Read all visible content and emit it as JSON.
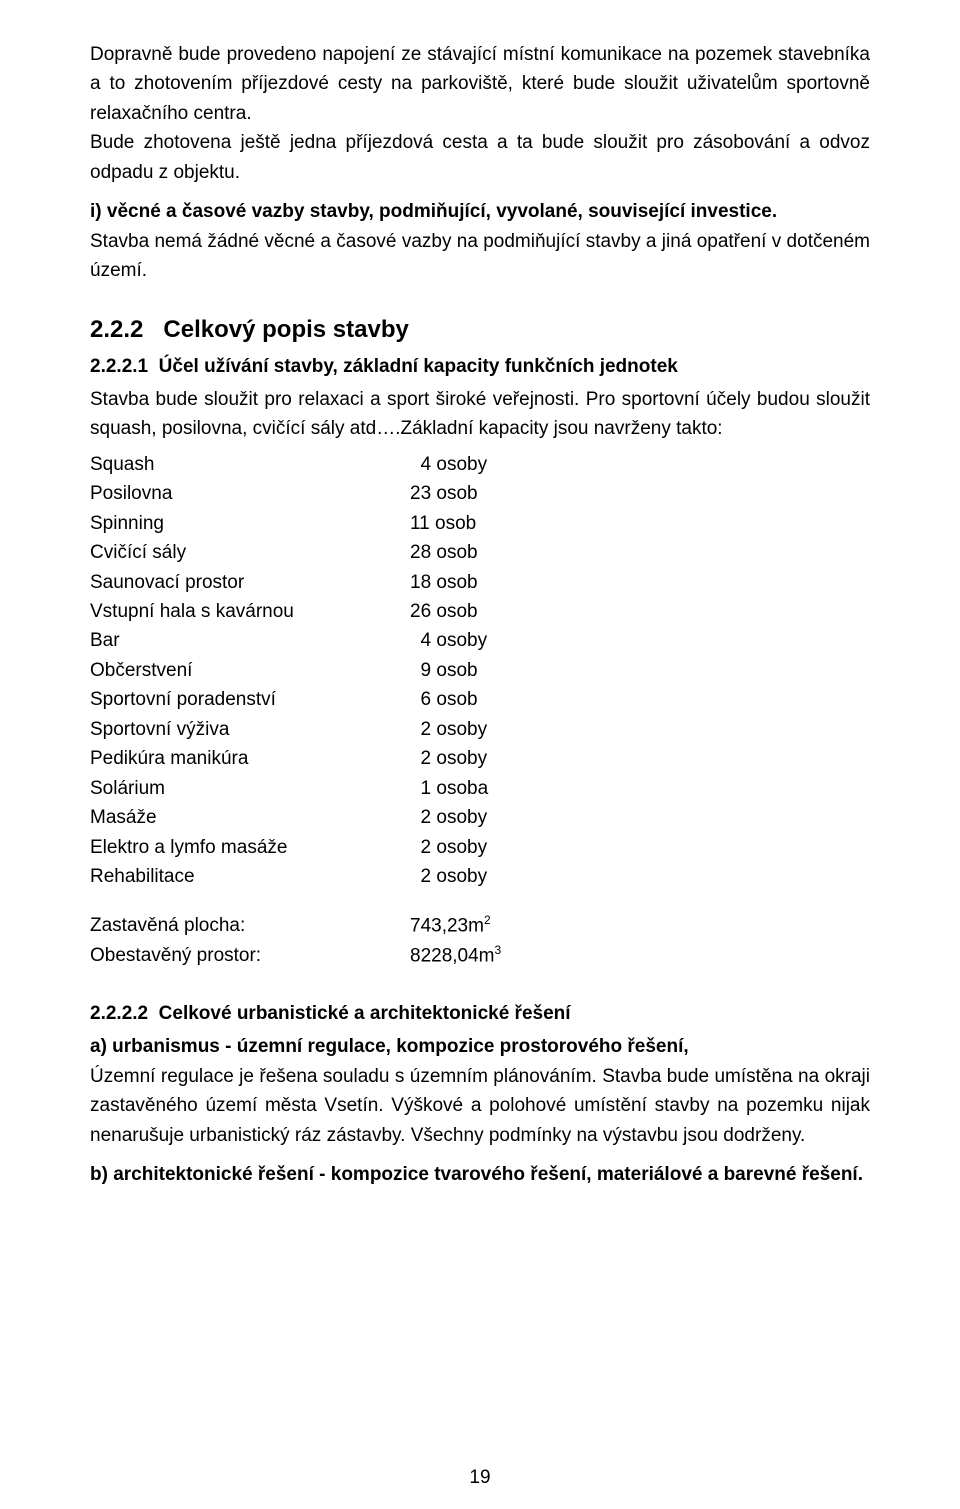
{
  "para1": "Dopravně bude provedeno napojení ze stávající místní komunikace na pozemek stavebníka a to zhotovením příjezdové cesty na parkoviště, které bude sloužit uživatelům sportovně relaxačního centra.",
  "para2": "Bude zhotovena ještě jedna příjezdová cesta a ta bude sloužit pro zásobování a odvoz odpadu z objektu.",
  "para3_bold": "i) věcné a časové vazby stavby, podmiňující, vyvolané, související investice.",
  "para4": "Stavba nemá žádné věcné a časové vazby na podmiňující stavby a jiná opatření v dotčeném území.",
  "h2_num": "2.2.2",
  "h2_text": "Celkový popis stavby",
  "h3_1_num": "2.2.2.1",
  "h3_1_text": "Účel užívání stavby, základní kapacity funkčních jednotek",
  "para5": "Stavba bude sloužit pro relaxaci a sport široké veřejnosti. Pro sportovní účely budou sloužit squash, posilovna, cvičící sály atd….Základní kapacity jsou navrženy takto:",
  "capacities": [
    {
      "label": "Squash",
      "value": "  4 osoby"
    },
    {
      "label": "Posilovna",
      "value": "23 osob"
    },
    {
      "label": "Spinning",
      "value": "11 osob"
    },
    {
      "label": "Cvičící sály",
      "value": "28 osob"
    },
    {
      "label": "Saunovací prostor",
      "value": "18 osob"
    },
    {
      "label": "Vstupní hala s kavárnou",
      "value": "26 osob"
    },
    {
      "label": "Bar",
      "value": "  4 osoby"
    },
    {
      "label": "Občerstvení",
      "value": "  9 osob"
    },
    {
      "label": "Sportovní poradenství",
      "value": "  6 osob"
    },
    {
      "label": "Sportovní výživa",
      "value": "  2 osoby"
    },
    {
      "label": "Pedikúra manikúra",
      "value": "  2 osoby"
    },
    {
      "label": "Solárium",
      "value": "  1 osoba"
    },
    {
      "label": "Masáže",
      "value": "  2 osoby"
    },
    {
      "label": "Elektro a lymfo masáže",
      "value": "  2 osoby"
    },
    {
      "label": "Rehabilitace",
      "value": "  2 osoby"
    }
  ],
  "area1_label": "Zastavěná plocha:",
  "area1_value": "743,23m",
  "area1_sup": "2",
  "area2_label": "Obestavěný prostor:",
  "area2_value": "8228,04m",
  "area2_sup": "3",
  "h3_2_num": "2.2.2.2",
  "h3_2_text": "Celkové urbanistické a architektonické řešení",
  "sub_a": "a) urbanismus - územní regulace, kompozice prostorového řešení,",
  "para6": "Územní regulace je řešena souladu s územním plánováním. Stavba bude umístěna na okraji zastavěného území města Vsetín. Výškové a polohové umístění stavby na pozemku nijak nenarušuje urbanistický ráz zástavby. Všechny podmínky na výstavbu jsou dodrženy.",
  "sub_b": "b) architektonické řešení - kompozice tvarového řešení, materiálové a barevné řešení.",
  "page_number": "19"
}
